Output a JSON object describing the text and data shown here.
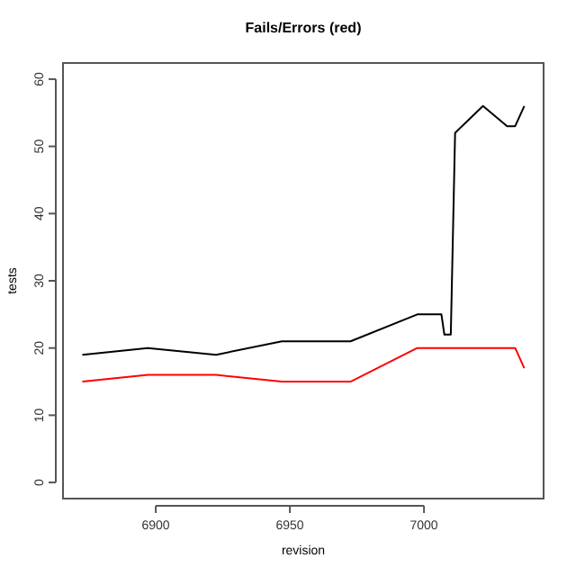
{
  "chart_data": {
    "type": "line",
    "title": "Fails/Errors (red)",
    "xlabel": "revision",
    "ylabel": "tests",
    "xlim": [
      6865.4,
      7044.6
    ],
    "xticks": [
      6900,
      6950,
      7000
    ],
    "ylim": [
      -2.4,
      62.4
    ],
    "yticks": [
      0,
      10,
      20,
      30,
      40,
      50,
      60
    ],
    "grid": false,
    "marker": "none",
    "line_style": "solid",
    "series": [
      {
        "color": "#000000",
        "x": [
          6872.6,
          6897,
          6922.5,
          6947,
          6972.6,
          6997.5,
          7006.5,
          7007.6,
          7010,
          7011.6,
          7022,
          7031,
          7034,
          7037.4
        ],
        "values": [
          19,
          20,
          19,
          21,
          21,
          25,
          25,
          22,
          22,
          52,
          56,
          53,
          53,
          56
        ]
      },
      {
        "color": "#ff0000",
        "x": [
          6872.6,
          6897,
          6922.5,
          6947,
          6972.6,
          6997.5,
          7034,
          7037.4
        ],
        "values": [
          15,
          16,
          16,
          15,
          15,
          20,
          20,
          17
        ]
      }
    ]
  }
}
